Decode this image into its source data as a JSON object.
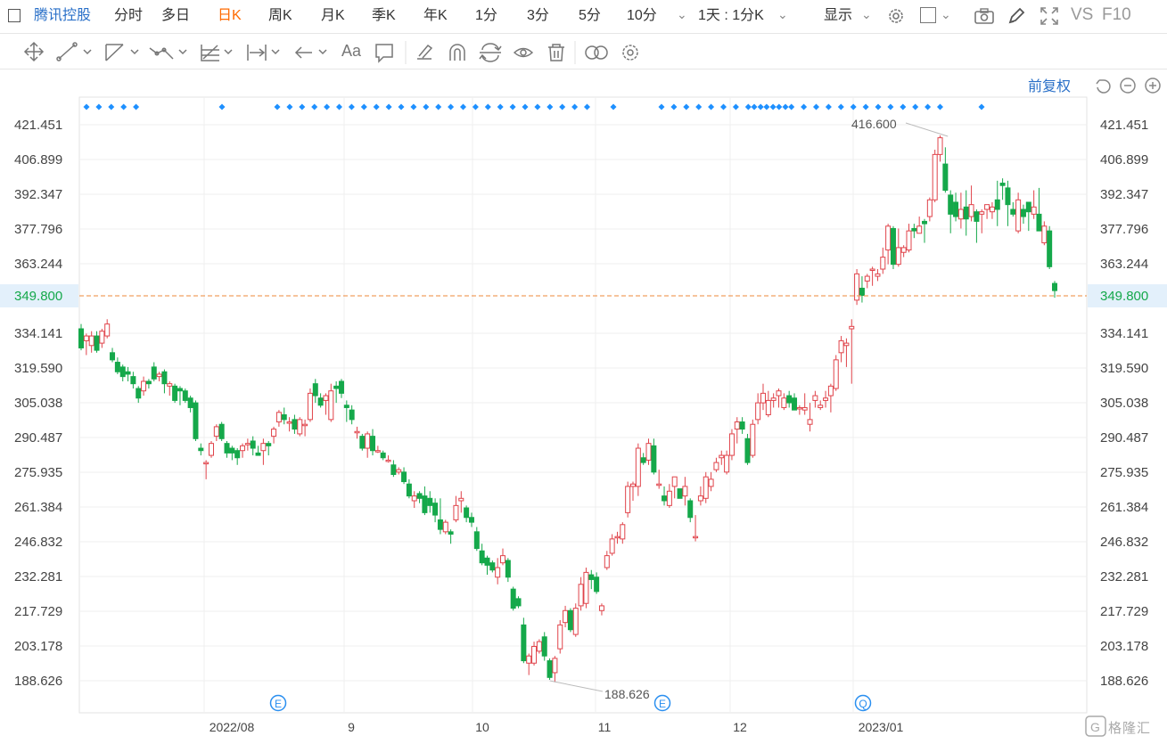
{
  "toolbar": {
    "stock_name": "腾讯控股",
    "periods": [
      {
        "label": "分时",
        "active": false
      },
      {
        "label": "多日",
        "active": false
      },
      {
        "label": "日K",
        "active": true
      },
      {
        "label": "周K",
        "active": false
      },
      {
        "label": "月K",
        "active": false
      },
      {
        "label": "季K",
        "active": false
      },
      {
        "label": "年K",
        "active": false
      },
      {
        "label": "1分",
        "active": false
      },
      {
        "label": "3分",
        "active": false
      },
      {
        "label": "5分",
        "active": false
      },
      {
        "label": "10分",
        "active": false
      }
    ],
    "interval_select": "1天 : 1分K",
    "display_label": "显示",
    "vs_label": "VS",
    "f10_label": "F10",
    "active_color": "#ff6a00"
  },
  "drawing_tools": {
    "icons": [
      "move-icon",
      "line-icon",
      "channel-icon",
      "polyline-icon",
      "fibonacci-icon",
      "measure-icon",
      "arrow-icon",
      "text-tool-icon",
      "comment-icon",
      "pen-icon",
      "magnet-icon",
      "sync-icon",
      "eye-icon",
      "trash-icon",
      "compare-icon",
      "settings-icon"
    ],
    "text_tool_label": "Aa"
  },
  "chart_controls": {
    "adjust_label": "前复权"
  },
  "chart_data": {
    "type": "candlestick",
    "y_ticks": [
      "421.451",
      "406.899",
      "392.347",
      "377.796",
      "363.244",
      "334.141",
      "319.590",
      "305.038",
      "290.487",
      "275.935",
      "261.384",
      "246.832",
      "232.281",
      "217.729",
      "203.178",
      "188.626"
    ],
    "x_ticks": [
      "2022/08",
      "9",
      "10",
      "11",
      "12",
      "2023/01"
    ],
    "last_price": "349.800",
    "high_label": "416.600",
    "low_label": "188.626",
    "ylim": [
      182,
      426
    ],
    "up_color": "#e0434a",
    "down_color": "#15a84a",
    "event_markers": [
      "E",
      "E",
      "Q"
    ],
    "candles": [
      [
        336,
        328,
        327,
        338
      ],
      [
        331,
        333,
        325,
        334
      ],
      [
        329,
        333,
        326,
        335
      ],
      [
        333,
        327,
        326,
        335
      ],
      [
        330,
        335,
        328,
        336
      ],
      [
        333,
        338,
        332,
        340
      ],
      [
        326,
        323,
        322,
        328
      ],
      [
        322,
        318,
        317,
        324
      ],
      [
        320,
        316,
        314,
        321
      ],
      [
        318,
        317,
        314,
        320
      ],
      [
        316,
        313,
        311,
        318
      ],
      [
        311,
        307,
        305,
        312
      ],
      [
        310,
        314,
        308,
        316
      ],
      [
        314,
        313,
        311,
        315
      ],
      [
        320,
        315,
        314,
        322
      ],
      [
        316,
        317,
        314,
        318
      ],
      [
        318,
        313,
        309,
        319
      ],
      [
        312,
        313,
        308,
        314
      ],
      [
        312,
        306,
        305,
        313
      ],
      [
        311,
        310,
        304,
        312
      ],
      [
        310,
        306,
        305,
        311
      ],
      [
        307,
        303,
        301,
        308
      ],
      [
        305,
        290,
        289,
        306
      ],
      [
        286,
        285,
        283,
        288
      ],
      [
        280,
        280,
        273,
        281
      ],
      [
        283,
        288,
        282,
        289
      ],
      [
        291,
        295,
        289,
        296
      ],
      [
        296,
        290,
        289,
        297
      ],
      [
        288,
        284,
        282,
        289
      ],
      [
        286,
        284,
        281,
        287
      ],
      [
        285,
        282,
        279,
        286
      ],
      [
        285,
        287,
        282,
        288
      ],
      [
        288,
        288,
        285,
        290
      ],
      [
        289,
        286,
        283,
        291
      ],
      [
        284,
        283,
        283,
        287
      ],
      [
        285,
        288,
        279,
        290
      ],
      [
        288,
        287,
        283,
        289
      ],
      [
        291,
        294,
        288,
        295
      ],
      [
        297,
        301,
        295,
        302
      ],
      [
        300,
        298,
        296,
        303
      ],
      [
        297,
        297,
        293,
        299
      ],
      [
        298,
        294,
        292,
        300
      ],
      [
        292,
        298,
        291,
        299
      ],
      [
        296,
        296,
        291,
        298
      ],
      [
        298,
        309,
        297,
        311
      ],
      [
        313,
        308,
        305,
        315
      ],
      [
        307,
        304,
        303,
        309
      ],
      [
        306,
        308,
        300,
        309
      ],
      [
        298,
        310,
        297,
        313
      ],
      [
        312,
        311,
        305,
        314
      ],
      [
        314,
        309,
        307,
        315
      ],
      [
        304,
        303,
        297,
        306
      ],
      [
        302,
        298,
        296,
        304
      ],
      [
        293,
        293,
        290,
        295
      ],
      [
        291,
        286,
        285,
        292
      ],
      [
        286,
        292,
        282,
        293
      ],
      [
        291,
        285,
        283,
        294
      ],
      [
        285,
        285,
        284,
        287
      ],
      [
        284,
        282,
        281,
        285
      ],
      [
        281,
        281,
        280,
        283
      ],
      [
        279,
        275,
        274,
        281
      ],
      [
        276,
        277,
        275,
        278
      ],
      [
        276,
        272,
        271,
        278
      ],
      [
        271,
        266,
        265,
        273
      ],
      [
        264,
        266,
        261,
        268
      ],
      [
        267,
        265,
        263,
        268
      ],
      [
        266,
        259,
        258,
        270
      ],
      [
        265,
        262,
        259,
        268
      ],
      [
        263,
        258,
        255,
        265
      ],
      [
        256,
        252,
        250,
        265
      ],
      [
        251,
        255,
        250,
        256
      ],
      [
        251,
        250,
        246,
        252
      ],
      [
        256,
        262,
        255,
        266
      ],
      [
        264,
        265,
        259,
        268
      ],
      [
        261,
        257,
        255,
        262
      ],
      [
        257,
        255,
        253,
        259
      ],
      [
        251,
        244,
        243,
        253
      ],
      [
        243,
        238,
        237,
        246
      ],
      [
        240,
        237,
        233,
        241
      ],
      [
        238,
        235,
        234,
        239
      ],
      [
        232,
        236,
        229,
        240
      ],
      [
        238,
        241,
        237,
        244
      ],
      [
        239,
        232,
        230,
        240
      ],
      [
        227,
        219,
        218,
        228
      ],
      [
        223,
        220,
        219,
        224
      ],
      [
        212,
        197,
        196,
        215
      ],
      [
        196,
        199,
        191,
        200
      ],
      [
        196,
        203,
        195,
        205
      ],
      [
        201,
        205,
        200,
        206
      ],
      [
        207,
        199,
        197,
        209
      ],
      [
        197,
        190,
        189,
        198
      ],
      [
        192,
        198,
        188,
        199
      ],
      [
        202,
        212,
        200,
        214
      ],
      [
        213,
        218,
        211,
        220
      ],
      [
        218,
        210,
        209,
        219
      ],
      [
        208,
        219,
        207,
        221
      ],
      [
        220,
        229,
        218,
        232
      ],
      [
        221,
        234,
        219,
        236
      ],
      [
        233,
        231,
        227,
        235
      ],
      [
        232,
        226,
        225,
        234
      ],
      [
        218,
        220,
        216,
        221
      ],
      [
        236,
        241,
        235,
        243
      ],
      [
        242,
        248,
        241,
        250
      ],
      [
        249,
        249,
        246,
        251
      ],
      [
        248,
        254,
        246,
        255
      ],
      [
        259,
        270,
        257,
        272
      ],
      [
        270,
        271,
        264,
        272
      ],
      [
        270,
        286,
        266,
        288
      ],
      [
        282,
        280,
        279,
        284
      ],
      [
        281,
        288,
        279,
        290
      ],
      [
        287,
        276,
        275,
        290
      ],
      [
        271,
        271,
        269,
        277
      ],
      [
        266,
        264,
        262,
        270
      ],
      [
        262,
        268,
        261,
        271
      ],
      [
        270,
        274,
        265,
        273
      ],
      [
        269,
        265,
        265,
        268
      ],
      [
        266,
        270,
        262,
        274
      ],
      [
        264,
        257,
        255,
        265
      ],
      [
        249,
        249,
        247,
        258
      ],
      [
        264,
        266,
        262,
        270
      ],
      [
        265,
        274,
        263,
        276
      ],
      [
        270,
        273,
        268,
        276
      ],
      [
        277,
        280,
        276,
        282
      ],
      [
        282,
        283,
        279,
        285
      ],
      [
        276,
        283,
        275,
        285
      ],
      [
        283,
        292,
        281,
        294
      ],
      [
        294,
        297,
        288,
        299
      ],
      [
        297,
        294,
        292,
        299
      ],
      [
        290,
        280,
        279,
        292
      ],
      [
        283,
        296,
        282,
        298
      ],
      [
        298,
        305,
        296,
        309
      ],
      [
        305,
        309,
        302,
        313
      ],
      [
        300,
        306,
        299,
        310
      ],
      [
        306,
        307,
        303,
        309
      ],
      [
        308,
        310,
        303,
        311
      ],
      [
        303,
        307,
        302,
        309
      ],
      [
        308,
        305,
        303,
        310
      ],
      [
        307,
        302,
        302,
        309
      ],
      [
        303,
        303,
        300,
        304
      ],
      [
        302,
        303,
        300,
        309
      ],
      [
        296,
        298,
        293,
        305
      ],
      [
        306,
        308,
        303,
        310
      ],
      [
        303,
        304,
        302,
        306
      ],
      [
        306,
        307,
        303,
        310
      ],
      [
        308,
        312,
        301,
        313
      ],
      [
        311,
        323,
        310,
        325
      ],
      [
        326,
        331,
        322,
        333
      ],
      [
        329,
        330,
        320,
        332
      ],
      [
        336,
        337,
        313,
        340
      ],
      [
        348,
        359,
        346,
        361
      ],
      [
        353,
        350,
        347,
        358
      ],
      [
        356,
        358,
        353,
        359
      ],
      [
        361,
        361,
        354,
        362
      ],
      [
        358,
        359,
        356,
        361
      ],
      [
        361,
        366,
        359,
        370
      ],
      [
        369,
        379,
        363,
        380
      ],
      [
        378,
        363,
        361,
        379
      ],
      [
        363,
        370,
        362,
        378
      ],
      [
        368,
        370,
        366,
        371
      ],
      [
        369,
        377,
        368,
        380
      ],
      [
        378,
        377,
        374,
        380
      ],
      [
        376,
        379,
        376,
        383
      ],
      [
        381,
        380,
        372,
        382
      ],
      [
        383,
        390,
        381,
        391
      ],
      [
        390,
        409,
        389,
        411
      ],
      [
        409,
        416,
        406,
        417
      ],
      [
        405,
        394,
        393,
        412
      ],
      [
        392,
        384,
        376,
        394
      ],
      [
        389,
        383,
        381,
        393
      ],
      [
        382,
        386,
        378,
        393
      ],
      [
        387,
        382,
        375,
        394
      ],
      [
        383,
        388,
        381,
        396
      ],
      [
        385,
        381,
        372,
        386
      ],
      [
        384,
        385,
        376,
        386
      ],
      [
        386,
        388,
        382,
        388
      ],
      [
        385,
        387,
        382,
        389
      ],
      [
        390,
        386,
        379,
        398
      ],
      [
        397,
        396,
        390,
        399
      ],
      [
        395,
        388,
        379,
        398
      ],
      [
        386,
        384,
        383,
        389
      ],
      [
        377,
        390,
        376,
        393
      ],
      [
        386,
        383,
        380,
        388
      ],
      [
        389,
        385,
        377,
        389
      ],
      [
        384,
        387,
        382,
        394
      ],
      [
        384,
        377,
        377,
        395
      ],
      [
        372,
        379,
        371,
        381
      ],
      [
        377,
        362,
        361,
        379
      ],
      [
        355,
        352,
        349,
        356
      ]
    ]
  }
}
